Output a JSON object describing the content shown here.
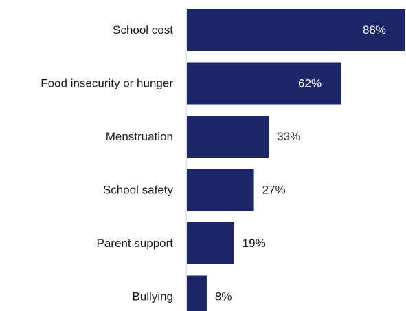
{
  "chart_data": {
    "type": "bar",
    "orientation": "horizontal",
    "categories": [
      "School cost",
      "Food insecurity or hunger",
      "Menstruation",
      "School safety",
      "Parent support",
      "Bullying"
    ],
    "values": [
      88,
      62,
      33,
      27,
      19,
      8
    ],
    "value_labels": [
      "88%",
      "62%",
      "33%",
      "27%",
      "19%",
      "8%"
    ],
    "title": "",
    "xlabel": "",
    "ylabel": "",
    "xlim": [
      0,
      88
    ],
    "grid": false,
    "legend": "none",
    "colors": {
      "bar": "#1c2565",
      "label_inside": "#ffffff",
      "label_outside": "#1a1a1a",
      "axis": "#d0d0d0",
      "category_text": "#1a1a1a"
    }
  }
}
